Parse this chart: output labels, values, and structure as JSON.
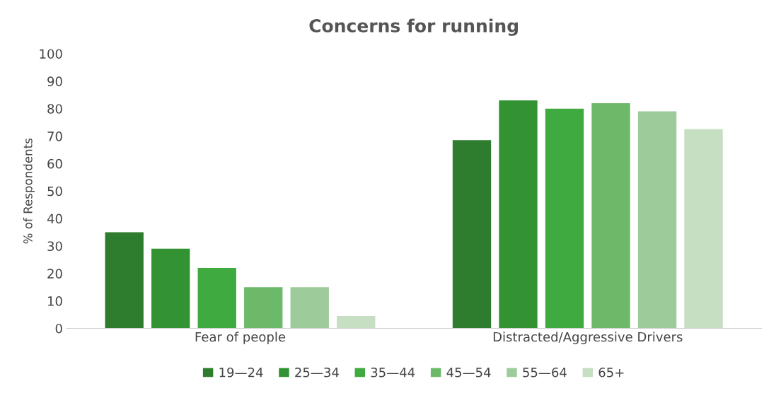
{
  "chart_data": {
    "type": "bar",
    "title": "Concerns for running",
    "ylabel": "% of Respondents",
    "categories": [
      "Fear of people",
      "Distracted/Aggressive Drivers"
    ],
    "series": [
      {
        "name": "19—24",
        "color": "#2e7d2e",
        "values": [
          35,
          68.5
        ]
      },
      {
        "name": "25—34",
        "color": "#339333",
        "values": [
          29,
          83
        ]
      },
      {
        "name": "35—44",
        "color": "#3faa3f",
        "values": [
          22,
          80
        ]
      },
      {
        "name": "45—54",
        "color": "#6cb96a",
        "values": [
          15,
          82
        ]
      },
      {
        "name": "55—64",
        "color": "#9ecb9a",
        "values": [
          15,
          79
        ]
      },
      {
        "name": "65+",
        "color": "#c6dec2",
        "values": [
          4.5,
          72.5
        ]
      }
    ],
    "ylim": [
      0,
      100
    ],
    "yticks": [
      0,
      10,
      20,
      30,
      40,
      50,
      60,
      70,
      80,
      90,
      100
    ],
    "grid": false,
    "legend": "bottom"
  }
}
